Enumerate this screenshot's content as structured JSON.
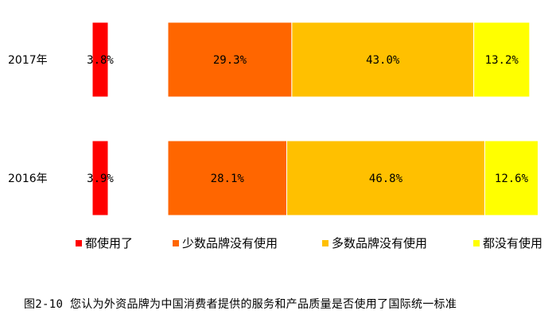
{
  "chart_data": {
    "type": "bar",
    "orientation": "horizontal",
    "stacked": true,
    "categories": [
      "2017年",
      "2016年"
    ],
    "series": [
      {
        "name": "都使用了",
        "color": "#ff0000",
        "values": [
          3.8,
          3.9
        ],
        "labels": [
          "3.8%",
          "3.9%"
        ]
      },
      {
        "name": "少数品牌没有使用",
        "color": "#ff6600",
        "values": [
          29.3,
          28.1
        ],
        "labels": [
          "29.3%",
          "28.1%"
        ]
      },
      {
        "name": "多数品牌没有使用",
        "color": "#ffc000",
        "values": [
          43.0,
          46.8
        ],
        "labels": [
          "43.0%",
          "46.8%"
        ]
      },
      {
        "name": "都没有使用",
        "color": "#ffff00",
        "values": [
          13.2,
          12.6
        ],
        "labels": [
          "13.2%",
          "12.6%"
        ]
      }
    ],
    "legend_position": "bottom",
    "grid": false
  },
  "caption": "图2-10 您认为外资品牌为中国消费者提供的服务和产品质量是否使用了国际统一标准"
}
